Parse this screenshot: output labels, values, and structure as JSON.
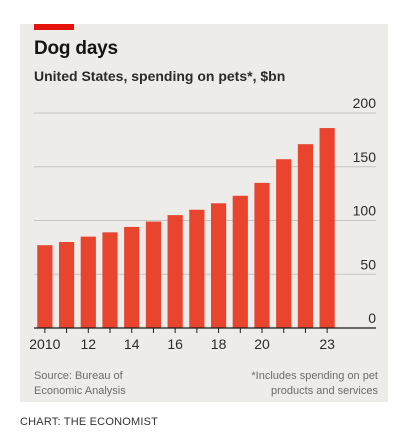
{
  "colors": {
    "bar": "#e8442e",
    "accent": "#e3120b",
    "background": "#eeece9",
    "gridline": "#c7c4bf",
    "baseline": "#1a1a1a"
  },
  "chart_data": {
    "type": "bar",
    "title": "Dog days",
    "subtitle": "United States, spending on pets*, $bn",
    "x": [
      2010,
      2011,
      2012,
      2013,
      2014,
      2015,
      2016,
      2017,
      2018,
      2019,
      2020,
      2021,
      2022,
      2023
    ],
    "values": [
      77,
      80,
      85,
      89,
      94,
      99,
      105,
      110,
      116,
      123,
      135,
      157,
      171,
      186
    ],
    "x_tick_labels": [
      "2010",
      "12",
      "14",
      "16",
      "18",
      "20",
      "23"
    ],
    "x_tick_positions": [
      2010,
      2012,
      2014,
      2016,
      2018,
      2020,
      2023
    ],
    "y_ticks": [
      0,
      50,
      100,
      150,
      200
    ],
    "ylim": [
      0,
      200
    ],
    "y_axis_position": "right",
    "grid": true,
    "source": "Source: Bureau of Economic Analysis",
    "note": "*Includes spending on pet products and services"
  },
  "credit": "CHART: THE ECONOMIST"
}
